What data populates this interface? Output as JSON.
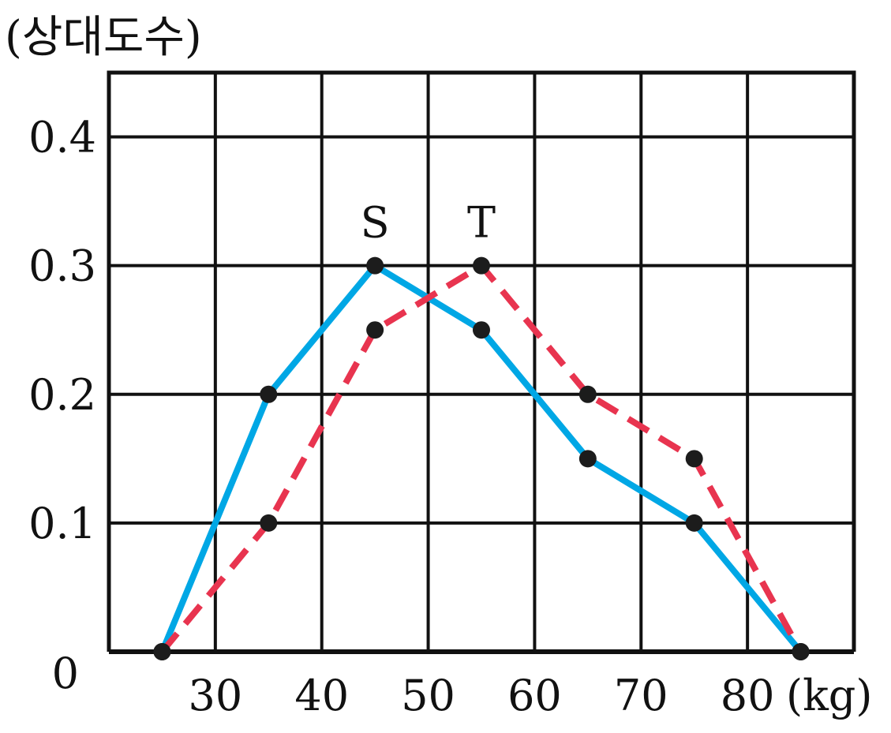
{
  "chart_data": {
    "type": "line",
    "ylabel": "(상대도수)",
    "xunit": "(kg)",
    "x_ticks": [
      "30",
      "40",
      "50",
      "60",
      "70",
      "80"
    ],
    "y_ticks": [
      "0",
      "0.1",
      "0.2",
      "0.3",
      "0.4"
    ],
    "xlim": [
      20,
      90
    ],
    "ylim": [
      0,
      0.45
    ],
    "grid": true,
    "series": [
      {
        "name": "S",
        "color": "#00a7e5",
        "style": "solid",
        "x": [
          25,
          35,
          45,
          55,
          65,
          75,
          85
        ],
        "y": [
          0,
          0.2,
          0.3,
          0.25,
          0.15,
          0.1,
          0
        ]
      },
      {
        "name": "T",
        "color": "#e8344f",
        "style": "dashed",
        "x": [
          25,
          35,
          45,
          55,
          65,
          75,
          85
        ],
        "y": [
          0,
          0.1,
          0.25,
          0.3,
          0.2,
          0.15,
          0
        ]
      }
    ]
  }
}
